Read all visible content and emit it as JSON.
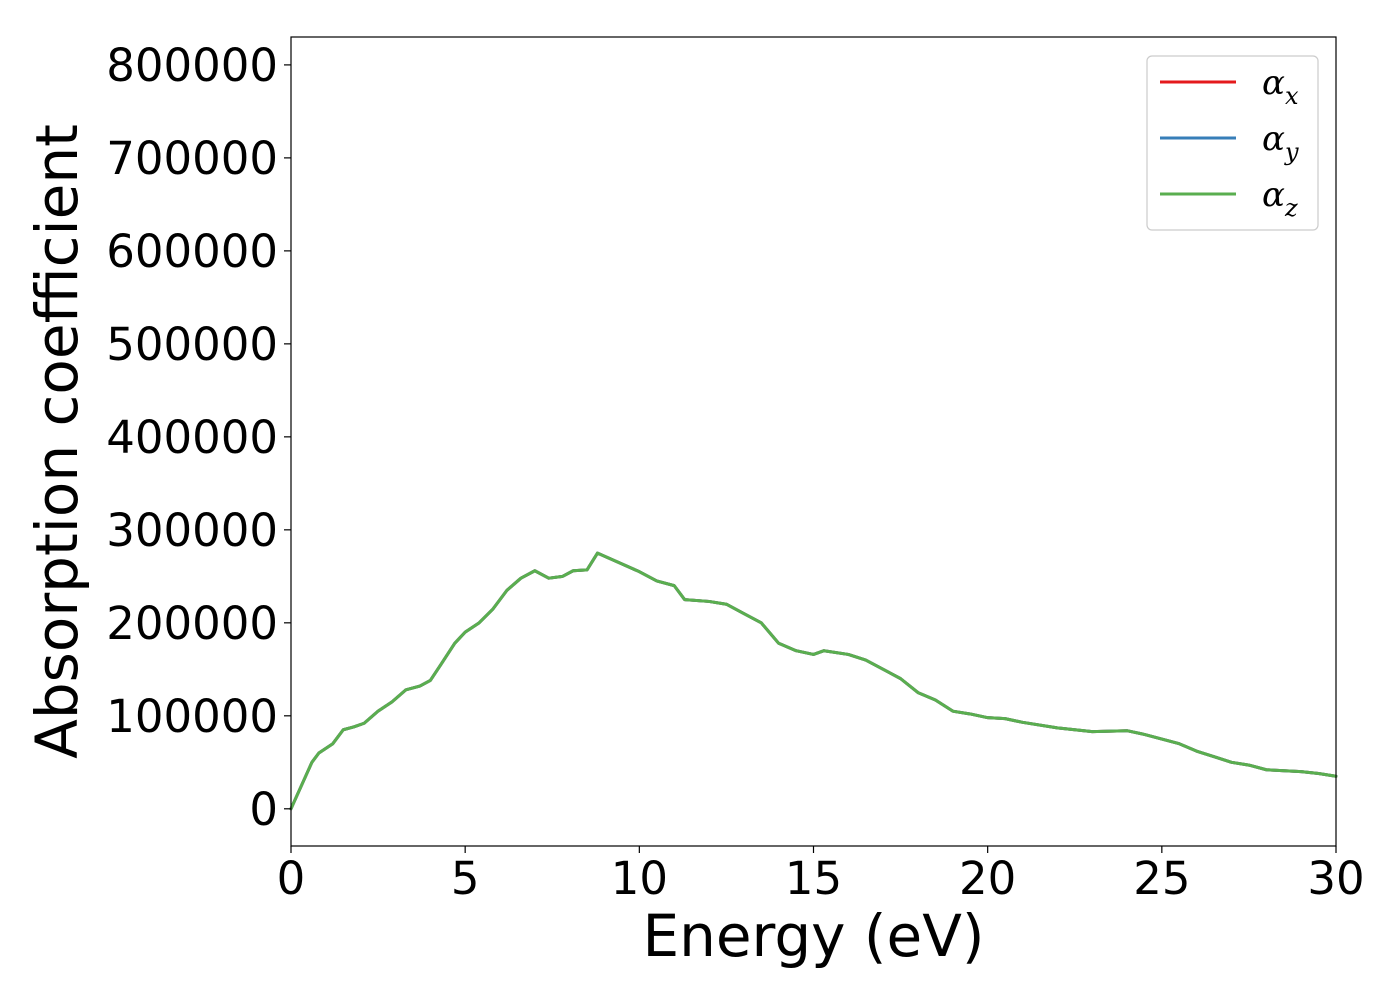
{
  "chart_data": {
    "type": "line",
    "title": "",
    "xlabel": "Energy (eV)",
    "ylabel": "Absorption coefficient",
    "xlim": [
      0,
      30
    ],
    "ylim": [
      -40000,
      830000
    ],
    "xticks": [
      0,
      5,
      10,
      15,
      20,
      25,
      30
    ],
    "xtick_labels": [
      "0",
      "5",
      "10",
      "15",
      "20",
      "25",
      "30"
    ],
    "yticks": [
      0,
      100000,
      200000,
      300000,
      400000,
      500000,
      600000,
      700000,
      800000
    ],
    "ytick_labels": [
      "0",
      "100000",
      "200000",
      "300000",
      "400000",
      "500000",
      "600000",
      "700000",
      "800000"
    ],
    "grid": false,
    "legend_position": "top-right",
    "series": [
      {
        "name": "α_x",
        "symbol": "α",
        "subscript": "x",
        "color": "#e41a1c",
        "x": [
          0,
          0.3,
          0.6,
          0.8,
          1.2,
          1.5,
          1.8,
          2.1,
          2.5,
          2.9,
          3.3,
          3.7,
          4.0,
          4.3,
          4.7,
          5.0,
          5.4,
          5.8,
          6.2,
          6.6,
          7.0,
          7.4,
          7.8,
          8.1,
          8.5,
          8.8,
          9.1,
          9.4,
          10.0,
          10.5,
          11.0,
          11.3,
          12.0,
          12.5,
          13.0,
          13.5,
          14.0,
          14.5,
          15.0,
          15.3,
          16.0,
          16.5,
          17.0,
          17.5,
          18.0,
          18.5,
          19.0,
          19.5,
          20.0,
          20.5,
          21.0,
          22.0,
          23.0,
          24.0,
          24.5,
          25.0,
          25.5,
          26.0,
          26.5,
          27.0,
          27.5,
          28.0,
          29.0,
          29.5,
          30.0
        ],
        "y": [
          0,
          25000,
          50000,
          60000,
          70000,
          85000,
          88000,
          92000,
          105000,
          115000,
          128000,
          132000,
          138000,
          155000,
          178000,
          190000,
          200000,
          215000,
          235000,
          248000,
          256000,
          248000,
          250000,
          256000,
          257000,
          275000,
          270000,
          265000,
          255000,
          245000,
          240000,
          225000,
          223000,
          220000,
          210000,
          200000,
          178000,
          170000,
          166000,
          170000,
          166000,
          160000,
          150000,
          140000,
          125000,
          117000,
          105000,
          102000,
          98000,
          97000,
          93000,
          87000,
          83000,
          84000,
          80000,
          75000,
          70000,
          62000,
          56000,
          50000,
          47000,
          42000,
          40000,
          38000,
          35000
        ]
      },
      {
        "name": "α_y",
        "symbol": "α",
        "subscript": "y",
        "color": "#377eb8",
        "x": [
          0,
          0.3,
          0.6,
          0.8,
          1.2,
          1.5,
          1.8,
          2.1,
          2.5,
          2.9,
          3.3,
          3.7,
          4.0,
          4.3,
          4.7,
          5.0,
          5.4,
          5.8,
          6.2,
          6.6,
          7.0,
          7.4,
          7.8,
          8.1,
          8.5,
          8.8,
          9.1,
          9.4,
          10.0,
          10.5,
          11.0,
          11.3,
          12.0,
          12.5,
          13.0,
          13.5,
          14.0,
          14.5,
          15.0,
          15.3,
          16.0,
          16.5,
          17.0,
          17.5,
          18.0,
          18.5,
          19.0,
          19.5,
          20.0,
          20.5,
          21.0,
          22.0,
          23.0,
          24.0,
          24.5,
          25.0,
          25.5,
          26.0,
          26.5,
          27.0,
          27.5,
          28.0,
          29.0,
          29.5,
          30.0
        ],
        "y": [
          0,
          25000,
          50000,
          60000,
          70000,
          85000,
          88000,
          92000,
          105000,
          115000,
          128000,
          132000,
          138000,
          155000,
          178000,
          190000,
          200000,
          215000,
          235000,
          248000,
          256000,
          248000,
          250000,
          256000,
          257000,
          275000,
          270000,
          265000,
          255000,
          245000,
          240000,
          225000,
          223000,
          220000,
          210000,
          200000,
          178000,
          170000,
          166000,
          170000,
          166000,
          160000,
          150000,
          140000,
          125000,
          117000,
          105000,
          102000,
          98000,
          97000,
          93000,
          87000,
          83000,
          84000,
          80000,
          75000,
          70000,
          62000,
          56000,
          50000,
          47000,
          42000,
          40000,
          38000,
          35000
        ]
      },
      {
        "name": "α_z",
        "symbol": "α",
        "subscript": "z",
        "color": "#5aae4f",
        "x": [
          0,
          0.3,
          0.6,
          0.8,
          1.2,
          1.5,
          1.8,
          2.1,
          2.5,
          2.9,
          3.3,
          3.7,
          4.0,
          4.3,
          4.7,
          5.0,
          5.4,
          5.8,
          6.2,
          6.6,
          7.0,
          7.4,
          7.8,
          8.1,
          8.5,
          8.8,
          9.1,
          9.4,
          10.0,
          10.5,
          11.0,
          11.3,
          12.0,
          12.5,
          13.0,
          13.5,
          14.0,
          14.5,
          15.0,
          15.3,
          16.0,
          16.5,
          17.0,
          17.5,
          18.0,
          18.5,
          19.0,
          19.5,
          20.0,
          20.5,
          21.0,
          22.0,
          23.0,
          24.0,
          24.5,
          25.0,
          25.5,
          26.0,
          26.5,
          27.0,
          27.5,
          28.0,
          29.0,
          29.5,
          30.0
        ],
        "y": [
          0,
          25000,
          50000,
          60000,
          70000,
          85000,
          88000,
          92000,
          105000,
          115000,
          128000,
          132000,
          138000,
          155000,
          178000,
          190000,
          200000,
          215000,
          235000,
          248000,
          256000,
          248000,
          250000,
          256000,
          257000,
          275000,
          270000,
          265000,
          255000,
          245000,
          240000,
          225000,
          223000,
          220000,
          210000,
          200000,
          178000,
          170000,
          166000,
          170000,
          166000,
          160000,
          150000,
          140000,
          125000,
          117000,
          105000,
          102000,
          98000,
          97000,
          93000,
          87000,
          83000,
          84000,
          80000,
          75000,
          70000,
          62000,
          56000,
          50000,
          47000,
          42000,
          40000,
          38000,
          35000
        ]
      }
    ]
  }
}
